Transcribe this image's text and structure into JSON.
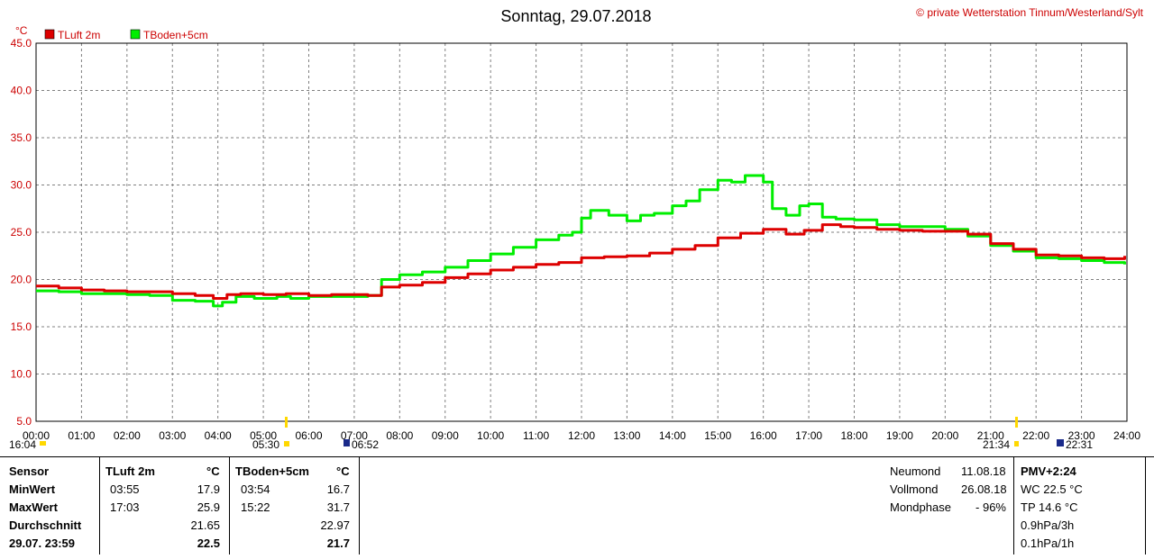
{
  "header": {
    "title": "Sonntag, 29.07.2018",
    "copyright": "© private Wetterstation Tinnum/Westerland/Sylt",
    "unit": "°C"
  },
  "colors": {
    "luft": "#dd0000",
    "boden": "#00ee00",
    "axis_text": "#cc0000",
    "grid": "#808080"
  },
  "chart_data": {
    "type": "line",
    "ylim": [
      5,
      45
    ],
    "ylabel": "°C",
    "y_ticks": [
      "45.0",
      "40.0",
      "35.0",
      "30.0",
      "25.0",
      "20.0",
      "15.0",
      "10.0",
      "5.0"
    ],
    "x_ticks": [
      "00:00",
      "01:00",
      "02:00",
      "03:00",
      "04:00",
      "05:00",
      "06:00",
      "07:00",
      "08:00",
      "09:00",
      "10:00",
      "11:00",
      "12:00",
      "13:00",
      "14:00",
      "15:00",
      "16:00",
      "17:00",
      "18:00",
      "19:00",
      "20:00",
      "21:00",
      "22:00",
      "23:00",
      "24:00"
    ],
    "legend_position": "top-left",
    "grid": true,
    "series": [
      {
        "name": "TLuft 2m",
        "x": [
          0,
          0.5,
          1,
          1.5,
          2,
          2.5,
          3,
          3.5,
          3.9,
          4.2,
          4.5,
          5,
          5.5,
          6,
          6.5,
          7,
          7.3,
          7.6,
          8,
          8.5,
          9,
          9.5,
          10,
          10.5,
          11,
          11.5,
          12,
          12.5,
          13,
          13.5,
          14,
          14.5,
          15,
          15.5,
          16,
          16.5,
          16.9,
          17.3,
          17.7,
          18,
          18.5,
          19,
          19.5,
          20,
          20.5,
          21,
          21.5,
          22,
          22.5,
          23,
          23.5,
          23.95
        ],
        "y": [
          19.3,
          19.1,
          18.9,
          18.8,
          18.7,
          18.7,
          18.5,
          18.3,
          18.0,
          18.4,
          18.5,
          18.4,
          18.5,
          18.3,
          18.4,
          18.4,
          18.3,
          19.2,
          19.4,
          19.7,
          20.2,
          20.6,
          21.0,
          21.3,
          21.6,
          21.8,
          22.3,
          22.4,
          22.5,
          22.8,
          23.2,
          23.6,
          24.4,
          24.9,
          25.3,
          24.8,
          25.2,
          25.8,
          25.6,
          25.5,
          25.3,
          25.2,
          25.1,
          25.1,
          24.8,
          23.8,
          23.2,
          22.6,
          22.5,
          22.3,
          22.2,
          22.5
        ]
      },
      {
        "name": "TBoden+5cm",
        "x": [
          0,
          0.5,
          1,
          1.5,
          2,
          2.5,
          3,
          3.5,
          3.9,
          4.1,
          4.4,
          4.8,
          5.3,
          5.6,
          6,
          6.5,
          7,
          7.3,
          7.6,
          8,
          8.5,
          9,
          9.5,
          10,
          10.5,
          11,
          11.5,
          11.8,
          12,
          12.2,
          12.6,
          13,
          13.3,
          13.6,
          14,
          14.3,
          14.6,
          15,
          15.3,
          15.6,
          15.8,
          16,
          16.2,
          16.5,
          16.8,
          17,
          17.3,
          17.6,
          18,
          18.5,
          19,
          19.5,
          20,
          20.5,
          21,
          21.5,
          22,
          22.5,
          23,
          23.5,
          23.95
        ],
        "y": [
          18.8,
          18.7,
          18.5,
          18.5,
          18.4,
          18.3,
          17.8,
          17.7,
          17.2,
          17.6,
          18.2,
          18.0,
          18.2,
          18.0,
          18.2,
          18.2,
          18.2,
          18.3,
          20.0,
          20.5,
          20.8,
          21.3,
          22.0,
          22.7,
          23.4,
          24.2,
          24.7,
          25.0,
          26.5,
          27.3,
          26.8,
          26.2,
          26.8,
          27.0,
          27.8,
          28.3,
          29.5,
          30.5,
          30.3,
          31.0,
          31.0,
          30.3,
          27.5,
          26.8,
          27.8,
          28.0,
          26.6,
          26.4,
          26.3,
          25.8,
          25.6,
          25.6,
          25.3,
          24.6,
          23.6,
          23.0,
          22.3,
          22.2,
          22.0,
          21.8,
          21.6
        ]
      }
    ]
  },
  "sun_markers": {
    "left": [
      "16:04",
      "05:30",
      "06:52"
    ],
    "right": [
      "21:34",
      "22:31"
    ]
  },
  "stats": {
    "col_sensor": {
      "header": "Sensor",
      "min": "MinWert",
      "max": "MaxWert",
      "avg": "Durchschnitt",
      "cur": "29.07. 23:59"
    },
    "luft": {
      "header": "TLuft 2m",
      "unit": "°C",
      "min_time": "03:55",
      "min_val": "17.9",
      "max_time": "17:03",
      "max_val": "25.9",
      "avg": "21.65",
      "cur": "22.5"
    },
    "boden": {
      "header": "TBoden+5cm",
      "unit": "°C",
      "min_time": "03:54",
      "min_val": "16.7",
      "max_time": "15:22",
      "max_val": "31.7",
      "avg": "22.97",
      "cur": "21.7"
    },
    "moon": {
      "new_label": "Neumond",
      "new_date": "11.08.18",
      "full_label": "Vollmond",
      "full_date": "26.08.18",
      "phase_label": "Mondphase",
      "phase_val": "- 96%"
    },
    "pmv": {
      "header": "PMV+2:24",
      "wc": "WC 22.5 °C",
      "tp": "TP 14.6 °C",
      "p3": "0.9hPa/3h",
      "p1": "0.1hPa/1h"
    }
  }
}
